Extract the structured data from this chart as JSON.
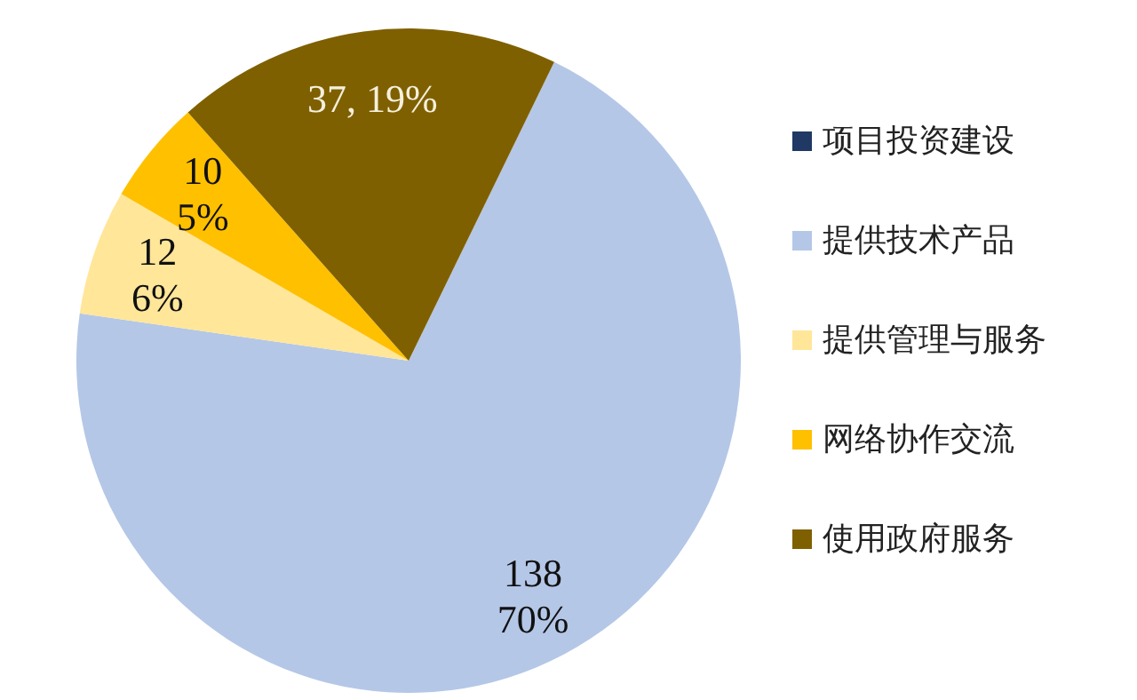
{
  "chart_data": {
    "type": "pie",
    "categories": [
      "项目投资建设",
      "提供技术产品",
      "提供管理与服务",
      "网络协作交流",
      "使用政府服务"
    ],
    "values": [
      0,
      138,
      12,
      10,
      37
    ],
    "colors": [
      "#1f3864",
      "#b4c7e7",
      "#ffe699",
      "#ffc000",
      "#7f6000"
    ],
    "value_labels": [
      null,
      "138\n70%",
      "12\n6%",
      "10\n5%",
      "37, 19%"
    ],
    "legend": "right"
  }
}
